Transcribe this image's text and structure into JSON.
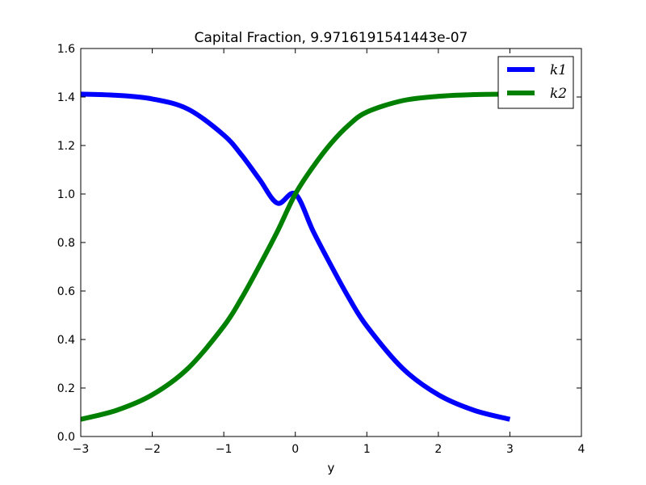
{
  "chart_data": {
    "type": "line",
    "title": "Capital Fraction, 9.9716191541443e-07",
    "xlabel": "y",
    "ylabel": "",
    "xlim": [
      -3,
      4
    ],
    "ylim": [
      0.0,
      1.6
    ],
    "xticks": [
      -3,
      -2,
      -1,
      0,
      1,
      2,
      3,
      4
    ],
    "xtick_labels": [
      "−3",
      "−2",
      "−1",
      "0",
      "1",
      "2",
      "3",
      "4"
    ],
    "yticks": [
      0.0,
      0.2,
      0.4,
      0.6,
      0.8,
      1.0,
      1.2,
      1.4,
      1.6
    ],
    "ytick_labels": [
      "0.0",
      "0.2",
      "0.4",
      "0.6",
      "0.8",
      "1.0",
      "1.2",
      "1.4",
      "1.6"
    ],
    "legend_position": "top-right",
    "grid": false,
    "x": [
      -3.0,
      -2.5,
      -2.0,
      -1.5,
      -1.0,
      -0.75,
      -0.5,
      -0.25,
      0.0,
      0.25,
      0.5,
      0.75,
      1.0,
      1.5,
      2.0,
      2.5,
      3.0
    ],
    "series": [
      {
        "name": "k1",
        "color": "#0000ff",
        "values": [
          1.412,
          1.407,
          1.392,
          1.35,
          1.243,
          1.16,
          1.06,
          0.962,
          1.0,
          0.846,
          0.705,
          0.571,
          0.455,
          0.281,
          0.172,
          0.108,
          0.071
        ]
      },
      {
        "name": "k2",
        "color": "#008000",
        "values": [
          0.071,
          0.108,
          0.172,
          0.281,
          0.455,
          0.571,
          0.705,
          0.846,
          1.0,
          1.113,
          1.209,
          1.285,
          1.338,
          1.385,
          1.403,
          1.41,
          1.412
        ]
      }
    ]
  }
}
